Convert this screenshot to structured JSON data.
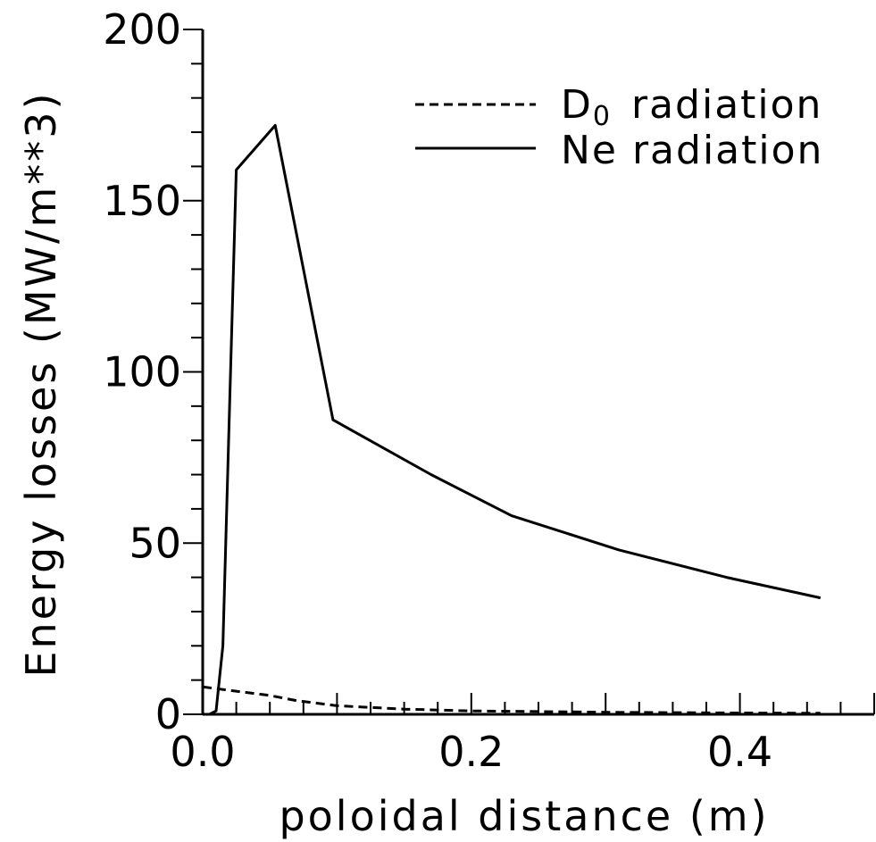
{
  "chart_data": {
    "type": "line",
    "xlabel": "poloidal distance (m)",
    "ylabel": "Energy losses (MW/m**3)",
    "xlim": [
      0.0,
      0.5
    ],
    "ylim": [
      0,
      200
    ],
    "x_ticks": [
      "0.0",
      "0.2",
      "0.4"
    ],
    "y_ticks": [
      "0",
      "50",
      "100",
      "150",
      "200"
    ],
    "grid": false,
    "legend_position": "top-right",
    "series": [
      {
        "name": "D0 radiation",
        "legend_main": "D",
        "legend_sub": "0",
        "legend_rest": "radiation",
        "line_style": "dashed",
        "x": [
          0.0,
          0.01,
          0.02,
          0.03,
          0.05,
          0.07,
          0.1,
          0.15,
          0.2,
          0.25,
          0.3,
          0.35,
          0.4,
          0.46
        ],
        "y": [
          8,
          7.5,
          7,
          6.5,
          5.5,
          4,
          2.5,
          1.5,
          1,
          0.8,
          0.6,
          0.5,
          0.4,
          0.3
        ]
      },
      {
        "name": "Ne radiation",
        "legend_text": "Ne radiation",
        "line_style": "solid",
        "x": [
          0.005,
          0.01,
          0.015,
          0.02,
          0.025,
          0.054,
          0.097,
          0.17,
          0.23,
          0.31,
          0.39,
          0.46
        ],
        "y": [
          0,
          1,
          20,
          90,
          159,
          172,
          86,
          70,
          58,
          48,
          40,
          34
        ]
      }
    ]
  }
}
